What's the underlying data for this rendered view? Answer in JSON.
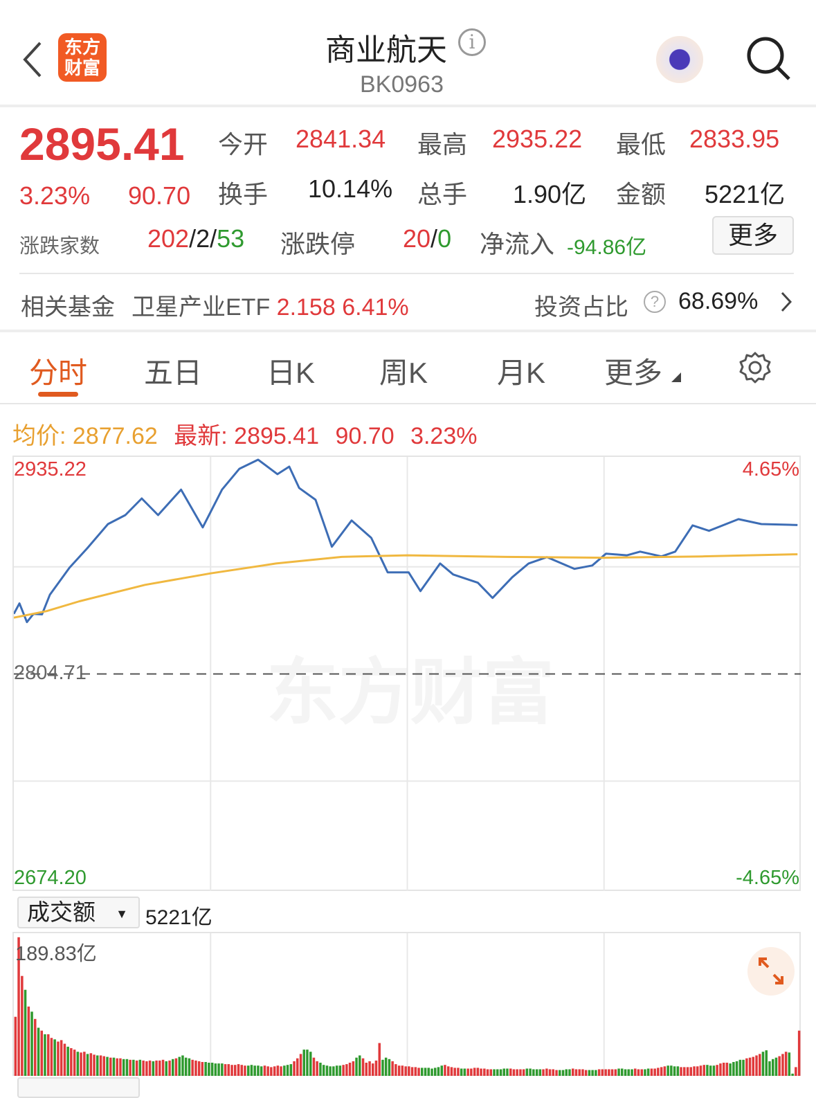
{
  "header": {
    "title": "商业航天",
    "code": "BK0963",
    "logo_text": "东方财富"
  },
  "quote": {
    "price": "2895.41",
    "change_pct": "3.23%",
    "change": "90.70",
    "open_label": "今开",
    "open": "2841.34",
    "high_label": "最高",
    "high": "2935.22",
    "low_label": "最低",
    "low": "2833.95",
    "turnover_label": "换手",
    "turnover": "10.14%",
    "volume_label": "总手",
    "volume": "1.90亿",
    "amount_label": "金额",
    "amount": "5221亿",
    "breadth_label": "涨跌家数",
    "up_count": "202",
    "flat_count": "2",
    "down_count": "53",
    "sep": "/",
    "limit_label": "涨跌停",
    "limit_up": "20",
    "limit_down": "0",
    "netflow_label": "净流入",
    "netflow": "-94.86亿",
    "more_label": "更多"
  },
  "fund": {
    "label": "相关基金",
    "name": "卫星产业ETF",
    "price": "2.158",
    "pct": "6.41%",
    "ratio_label": "投资占比",
    "ratio": "68.69%"
  },
  "tabs": [
    {
      "label": "分时",
      "active": true
    },
    {
      "label": "五日"
    },
    {
      "label": "日K"
    },
    {
      "label": "周K"
    },
    {
      "label": "月K"
    },
    {
      "label": "更多"
    }
  ],
  "chart_info": {
    "avg_label": "均价:",
    "avg": "2877.62",
    "last_label": "最新:",
    "last": "2895.41",
    "change": "90.70",
    "pct": "3.23%"
  },
  "colors": {
    "up": "#e0393b",
    "down": "#2f9a2f",
    "price_line": "#3d6db5",
    "avg_line": "#f0b840",
    "accent": "#e05a1f"
  },
  "chart_data": [
    {
      "type": "line",
      "ylim": [
        2674.2,
        2935.22
      ],
      "base": 2804.71,
      "xlim": [
        0,
        240
      ],
      "y_labels": {
        "top": "2935.22",
        "base": "2804.71",
        "bottom": "2674.20",
        "top_pct": "4.65%",
        "bottom_pct": "-4.65%"
      },
      "series": [
        {
          "key": "price",
          "x": [
            0,
            1.7,
            4,
            6,
            8.6,
            11,
            17,
            22.4,
            28.7,
            34,
            39,
            44,
            51,
            57.6,
            63.5,
            68.8,
            74.5,
            80.4,
            84,
            87,
            92,
            97,
            103,
            109,
            114,
            120.4,
            124,
            130,
            134,
            141.5,
            146,
            152,
            157,
            162.6,
            171,
            176.4,
            180.6,
            187,
            191,
            197.5,
            201.7,
            207,
            212,
            221,
            228,
            236.5,
            239
          ],
          "y": [
            2841.3,
            2847.7,
            2836.3,
            2841.3,
            2841,
            2853,
            2869.5,
            2881.3,
            2896,
            2901.5,
            2911.6,
            2901.5,
            2917,
            2894,
            2917,
            2929.7,
            2935.2,
            2926.4,
            2931,
            2918,
            2910.8,
            2882.2,
            2898.2,
            2887.6,
            2866.6,
            2866.6,
            2855.2,
            2872,
            2865.3,
            2860.3,
            2851,
            2863.6,
            2872,
            2875.9,
            2868.7,
            2870.8,
            2878,
            2877,
            2879.2,
            2876.3,
            2879.2,
            2895.2,
            2891.9,
            2899,
            2896,
            2895.6,
            2895.41
          ]
        },
        {
          "key": "avg",
          "x": [
            0,
            10,
            20,
            40,
            60,
            80,
            100,
            120,
            150,
            180,
            210,
            239
          ],
          "y": [
            2839,
            2843,
            2849,
            2859,
            2866,
            2872,
            2876,
            2877,
            2876,
            2875.5,
            2876.3,
            2877.6
          ]
        }
      ]
    },
    {
      "type": "bar",
      "selector_label": "成交额",
      "total": "5221亿",
      "max_label": "189.83亿",
      "ymax": 189.83,
      "values": [
        81,
        190,
        137,
        118,
        95,
        88,
        78,
        66,
        62,
        57,
        57,
        52,
        50,
        47,
        49,
        44,
        40,
        38,
        36,
        33,
        32,
        33,
        30,
        31,
        29,
        28,
        28,
        27,
        26,
        25,
        25,
        24,
        24,
        23,
        23,
        22,
        22,
        21,
        22,
        21,
        20,
        21,
        20,
        21,
        21,
        22,
        20,
        21,
        23,
        24,
        26,
        28,
        25,
        24,
        22,
        21,
        20,
        19,
        19,
        18,
        18,
        17,
        17,
        17,
        16,
        16,
        15,
        15,
        16,
        15,
        14,
        14,
        15,
        14,
        14,
        13,
        14,
        13,
        12,
        13,
        14,
        13,
        14,
        15,
        16,
        20,
        24,
        30,
        36,
        36,
        33,
        25,
        20,
        18,
        15,
        14,
        13,
        13,
        14,
        14,
        15,
        16,
        18,
        20,
        25,
        28,
        24,
        18,
        20,
        17,
        21,
        45,
        22,
        25,
        23,
        20,
        16,
        14,
        14,
        13,
        13,
        12,
        12,
        11,
        11,
        11,
        11,
        10,
        11,
        12,
        14,
        15,
        13,
        12,
        11,
        11,
        10,
        10,
        10,
        10,
        11,
        11,
        10,
        10,
        9,
        9,
        9,
        9,
        9,
        10,
        10,
        10,
        9,
        9,
        9,
        9,
        10,
        10,
        9,
        9,
        9,
        9,
        10,
        9,
        9,
        8,
        8,
        8,
        9,
        9,
        10,
        9,
        9,
        9,
        8,
        8,
        8,
        8,
        9,
        9,
        9,
        9,
        9,
        9,
        10,
        10,
        9,
        9,
        9,
        10,
        9,
        9,
        9,
        10,
        10,
        10,
        11,
        12,
        13,
        14,
        14,
        13,
        13,
        12,
        12,
        12,
        12,
        13,
        13,
        14,
        15,
        15,
        14,
        14,
        15,
        17,
        18,
        18,
        17,
        19,
        20,
        22,
        22,
        24,
        25,
        26,
        28,
        30,
        33,
        35,
        20,
        23,
        25,
        27,
        30,
        33,
        32,
        3,
        12,
        62
      ],
      "up": "rrrgrgrgrgrrgrrrgrrgrrgrrgrrgrgrrggrgrgrrrgrrrgrgrggggrrrrggggggrrrrrrrgggggrrrrrrgggrrrgggrrgggggggrrrrggrrrrrrgggrrrrrrrrrgggggggrrrrrggrrrrrrrrgggggrrrrrgggggrrrrrggggrrrrrgggrrrrrrgggggrrrggrrrrrggggrrrrrrrrgggrrrrgggggrrrrrgggggrrrggrr"
    }
  ]
}
